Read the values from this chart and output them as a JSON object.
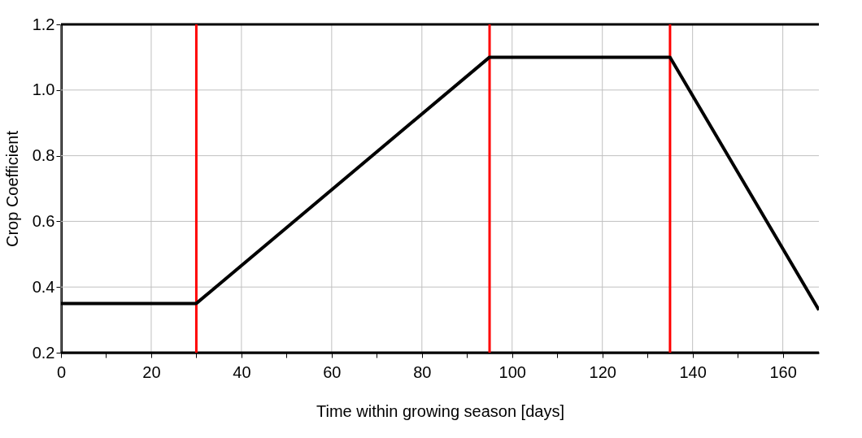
{
  "chart_data": {
    "type": "line",
    "xlabel": "Time within growing season [days]",
    "ylabel": "Crop Coefficient",
    "x": [
      0,
      30,
      95,
      135,
      168
    ],
    "series": [
      {
        "color": "#000000",
        "values": [
          0.35,
          0.35,
          1.1,
          1.1,
          0.33
        ]
      }
    ],
    "xlim": [
      0,
      168
    ],
    "ylim": [
      0.2,
      1.2
    ],
    "xticks": [
      0,
      {
        "value": 10,
        "label": null
      },
      20,
      {
        "value": 30,
        "label": null
      },
      40,
      {
        "value": 50,
        "label": null
      },
      60,
      {
        "value": 70,
        "label": null
      },
      80,
      {
        "value": 90,
        "label": null
      },
      100,
      {
        "value": 110,
        "label": null
      },
      120,
      {
        "value": 130,
        "label": null
      },
      140,
      {
        "value": 150,
        "label": null
      },
      160
    ],
    "yticks": [
      0.2,
      0.4,
      0.6,
      0.8,
      {
        "value": 1.0,
        "label": "1.0"
      },
      1.2
    ],
    "ref_lines": [
      {
        "axis": "x",
        "value": 30,
        "color": "#ff0000"
      },
      {
        "axis": "x",
        "value": 95,
        "color": "#ff0000"
      },
      {
        "axis": "x",
        "value": 135,
        "color": "#ff0000"
      }
    ],
    "grid": true,
    "marker": "none",
    "line_style": "solid"
  }
}
